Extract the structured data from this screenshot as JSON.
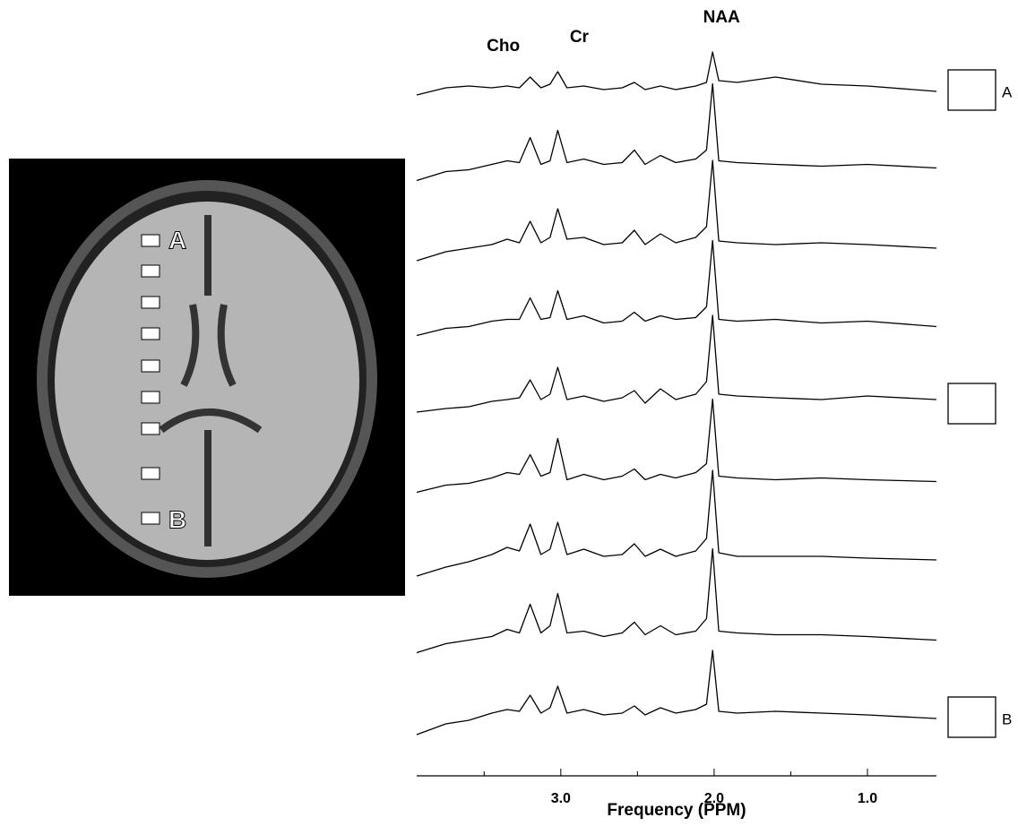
{
  "chart_data": {
    "type": "line",
    "x_label": "Frequency (PPM)",
    "peak_labels": [
      {
        "text": "Cho",
        "x": 3.2
      },
      {
        "text": "Cr",
        "x": 3.02
      },
      {
        "text": "NAA",
        "x": 2.01
      }
    ],
    "xlim": [
      3.94,
      0.55
    ],
    "xticks": [
      {
        "value": 3,
        "label": "3.0"
      },
      {
        "value": 2,
        "label": "2.0"
      },
      {
        "value": 1,
        "label": "1.0"
      }
    ],
    "minor_xticks": [
      3.5,
      2.5,
      1.5
    ],
    "voxel_labels": [
      "A",
      "B"
    ],
    "x": [
      3.94,
      3.75,
      3.6,
      3.45,
      3.35,
      3.27,
      3.2,
      3.13,
      3.07,
      3.02,
      2.96,
      2.85,
      2.72,
      2.6,
      2.52,
      2.45,
      2.35,
      2.25,
      2.12,
      2.05,
      2.01,
      1.97,
      1.85,
      1.6,
      1.3,
      1.0,
      0.55
    ],
    "series": [
      {
        "color": "#000",
        "values": [
          -6,
          2,
          4,
          2,
          4,
          2,
          14,
          2,
          6,
          20,
          2,
          4,
          0,
          2,
          8,
          0,
          4,
          0,
          4,
          8,
          42,
          10,
          8,
          14,
          6,
          4,
          -2
        ]
      },
      {
        "color": "#000",
        "values": [
          -14,
          -4,
          -2,
          4,
          8,
          6,
          34,
          4,
          8,
          42,
          6,
          10,
          4,
          6,
          20,
          4,
          14,
          6,
          10,
          20,
          94,
          8,
          6,
          4,
          2,
          4,
          0
        ]
      },
      {
        "color": "#000",
        "values": [
          -16,
          -6,
          -2,
          2,
          8,
          4,
          28,
          4,
          10,
          42,
          8,
          10,
          2,
          4,
          18,
          2,
          14,
          4,
          10,
          22,
          96,
          6,
          4,
          2,
          4,
          2,
          -2
        ]
      },
      {
        "color": "#000",
        "values": [
          -12,
          -4,
          -2,
          4,
          6,
          6,
          30,
          6,
          8,
          38,
          6,
          10,
          2,
          4,
          14,
          4,
          10,
          6,
          8,
          20,
          94,
          6,
          4,
          6,
          2,
          4,
          -2
        ]
      },
      {
        "color": "#000",
        "values": [
          -10,
          -6,
          -4,
          2,
          4,
          6,
          26,
          4,
          10,
          40,
          4,
          8,
          2,
          6,
          14,
          0,
          16,
          4,
          10,
          24,
          98,
          10,
          8,
          6,
          4,
          8,
          4
        ]
      },
      {
        "color": "#000",
        "values": [
          -12,
          -4,
          -2,
          4,
          10,
          8,
          30,
          6,
          10,
          48,
          2,
          8,
          2,
          6,
          14,
          2,
          8,
          4,
          10,
          20,
          92,
          6,
          4,
          2,
          4,
          2,
          0
        ]
      },
      {
        "color": "#000",
        "values": [
          -18,
          -8,
          -2,
          6,
          14,
          10,
          40,
          6,
          12,
          42,
          6,
          12,
          4,
          6,
          18,
          4,
          12,
          4,
          10,
          24,
          100,
          8,
          4,
          4,
          4,
          2,
          0
        ]
      },
      {
        "color": "#000",
        "values": [
          -16,
          -6,
          -2,
          2,
          10,
          6,
          38,
          6,
          14,
          50,
          6,
          8,
          2,
          6,
          18,
          4,
          14,
          4,
          8,
          22,
          100,
          8,
          6,
          4,
          4,
          2,
          -2
        ]
      },
      {
        "color": "#000",
        "values": [
          -20,
          -8,
          -4,
          4,
          8,
          6,
          24,
          4,
          10,
          34,
          4,
          8,
          2,
          4,
          12,
          2,
          10,
          4,
          8,
          14,
          74,
          6,
          4,
          6,
          4,
          2,
          -2
        ]
      }
    ]
  }
}
